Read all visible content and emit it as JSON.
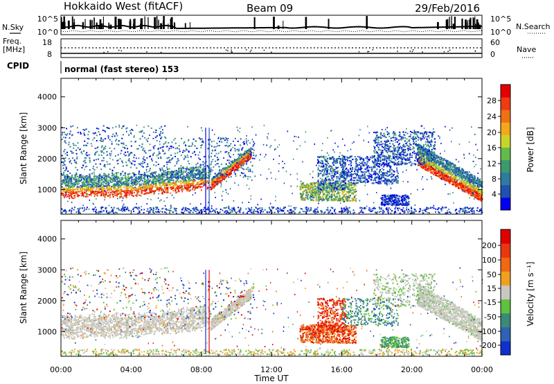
{
  "header": {
    "station": "Hokkaido West (fitACF)",
    "beam": "Beam 09",
    "date": "29/Feb/2016"
  },
  "noise_panel": {
    "left_label": "N.Sky",
    "right_label": "N.Search",
    "left_ticks": [
      "10^5",
      "10^0"
    ],
    "right_ticks": [
      "10^5",
      "10^0"
    ]
  },
  "freq_panel": {
    "left_label_line1": "Freq.",
    "left_label_line2": "[MHz]",
    "left_ticks": [
      "18",
      "8"
    ],
    "right_label": "Nave",
    "right_ticks": [
      "60",
      "0"
    ]
  },
  "cpid": {
    "label": "CPID",
    "value": "normal (fast stereo) 153"
  },
  "chart_data": [
    {
      "type": "heatmap",
      "quantity": "power",
      "ylabel": "Slant Range [km]",
      "ylim": [
        200,
        4600
      ],
      "yticks": [
        1000,
        2000,
        3000,
        4000
      ],
      "xlim": [
        0,
        24
      ],
      "colorbar": {
        "label": "Power [dB]",
        "range": [
          0,
          32
        ],
        "tick_labels": [
          "28",
          "24",
          "20",
          "16",
          "12",
          "8",
          "4"
        ],
        "colors": [
          "#0000ee",
          "#2050b0",
          "#2e7ba0",
          "#3c9a6e",
          "#62bb4a",
          "#c8d428",
          "#f2a818",
          "#f07014",
          "#f03a12",
          "#e60000"
        ]
      }
    },
    {
      "type": "heatmap",
      "quantity": "velocity",
      "ylabel": "Slant Range [km]",
      "ylim": [
        200,
        4600
      ],
      "yticks": [
        1000,
        2000,
        3000,
        4000
      ],
      "xlim": [
        0,
        24
      ],
      "xlabel": "Time UT",
      "xtick_labels": [
        "00:00",
        "04:00",
        "08:00",
        "12:00",
        "16:00",
        "20:00",
        "00:00"
      ],
      "colorbar": {
        "label": "Velocity [m s⁻¹]",
        "tick_labels": [
          "200",
          "100",
          "50",
          "15",
          "-15",
          "-50",
          "-100",
          "-200"
        ],
        "colors": [
          "#1030d0",
          "#2d62b4",
          "#3a8a78",
          "#5ec23e",
          "#c8c8c0",
          "#f0a020",
          "#f06812",
          "#e83810",
          "#e00000"
        ]
      }
    }
  ]
}
